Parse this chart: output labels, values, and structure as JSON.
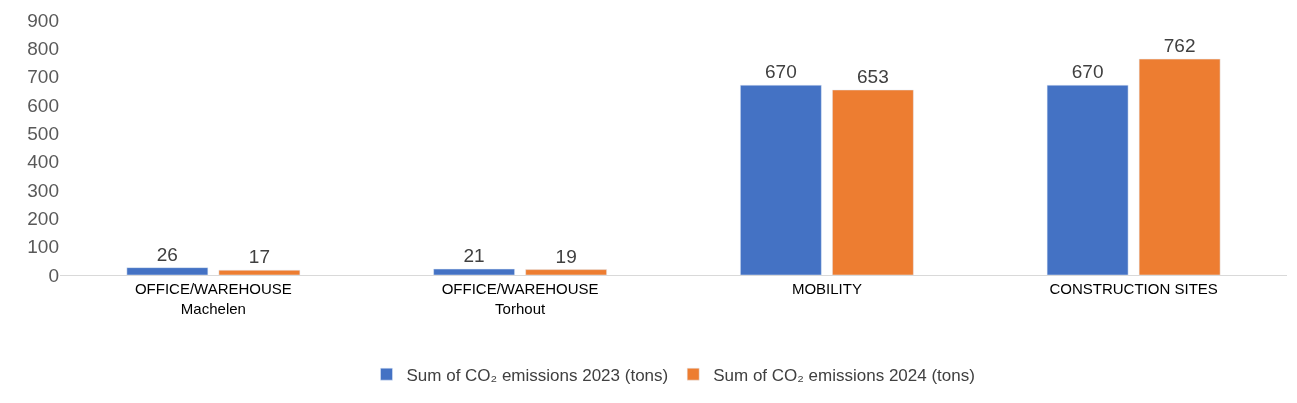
{
  "chart_data": {
    "type": "bar",
    "categories": [
      "OFFICE/WAREHOUSE\nMachelen",
      "OFFICE/WAREHOUSE\nTorhout",
      "MOBILITY",
      "CONSTRUCTION SITES"
    ],
    "series": [
      {
        "name": "Sum of CO₂ emissions 2023 (tons)",
        "color": "#4472c4",
        "values": [
          26,
          21,
          670,
          670
        ]
      },
      {
        "name": "Sum of CO₂ emissions 2024 (tons)",
        "color": "#ed7d31",
        "values": [
          17,
          19,
          653,
          762
        ]
      }
    ],
    "ylim": [
      0,
      900
    ],
    "yticks": [
      0,
      100,
      200,
      300,
      400,
      500,
      600,
      700,
      800,
      900
    ],
    "grid": false,
    "legend": "bottom",
    "data_labels": true
  }
}
